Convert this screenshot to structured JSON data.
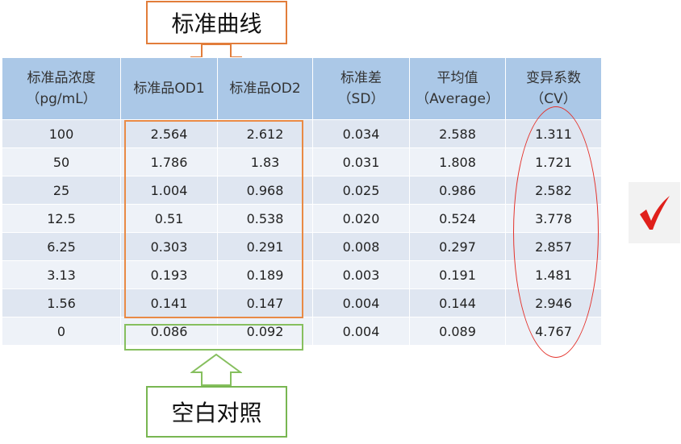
{
  "callouts": {
    "standard_curve": "标准曲线",
    "blank_control": "空白对照"
  },
  "headers": [
    {
      "line1": "标准品浓度",
      "line2": "（pg/mL）"
    },
    {
      "line1": "标准品OD1",
      "line2": ""
    },
    {
      "line1": "标准品OD2",
      "line2": ""
    },
    {
      "line1": "标准差",
      "line2": "（SD）"
    },
    {
      "line1": "平均值",
      "line2": "（Average）"
    },
    {
      "line1": "变异系数",
      "line2": "（CV）"
    }
  ],
  "rows": [
    [
      "100",
      "2.564",
      "2.612",
      "0.034",
      "2.588",
      "1.311"
    ],
    [
      "50",
      "1.786",
      "1.83",
      "0.031",
      "1.808",
      "1.721"
    ],
    [
      "25",
      "1.004",
      "0.968",
      "0.025",
      "0.986",
      "2.582"
    ],
    [
      "12.5",
      "0.51",
      "0.538",
      "0.020",
      "0.524",
      "3.778"
    ],
    [
      "6.25",
      "0.303",
      "0.291",
      "0.008",
      "0.297",
      "2.857"
    ],
    [
      "3.13",
      "0.193",
      "0.189",
      "0.003",
      "0.191",
      "1.481"
    ],
    [
      "1.56",
      "0.141",
      "0.147",
      "0.004",
      "0.144",
      "2.946"
    ],
    [
      "0",
      "0.086",
      "0.092",
      "0.004",
      "0.089",
      "4.767"
    ]
  ],
  "colors": {
    "header_bg": "#abc8e7",
    "row_odd": "#dfe6f1",
    "row_even": "#eef2f8",
    "standard_curve_outline": "#e98a45",
    "blank_control_outline": "#86bf5e",
    "cv_ellipse": "#e4322b",
    "checkmark": "#e0201b"
  },
  "icons": {
    "checkmark": "checkmark-icon",
    "down_arrow": "down-arrow-icon",
    "up_arrow": "up-arrow-icon"
  }
}
